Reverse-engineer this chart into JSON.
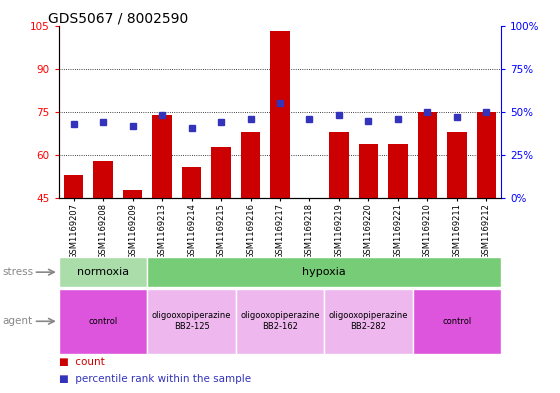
{
  "title": "GDS5067 / 8002590",
  "samples": [
    "GSM1169207",
    "GSM1169208",
    "GSM1169209",
    "GSM1169213",
    "GSM1169214",
    "GSM1169215",
    "GSM1169216",
    "GSM1169217",
    "GSM1169218",
    "GSM1169219",
    "GSM1169220",
    "GSM1169221",
    "GSM1169210",
    "GSM1169211",
    "GSM1169212"
  ],
  "counts": [
    53,
    58,
    48,
    74,
    56,
    63,
    68,
    103,
    45,
    68,
    64,
    64,
    75,
    68,
    75
  ],
  "percentiles": [
    43,
    44,
    42,
    48,
    41,
    44,
    46,
    55,
    46,
    48,
    45,
    46,
    50,
    47,
    50
  ],
  "bar_color": "#cc0000",
  "dot_color": "#3333bb",
  "ylim_left": [
    45,
    105
  ],
  "ylim_right": [
    0,
    100
  ],
  "yticks_left": [
    45,
    60,
    75,
    90,
    105
  ],
  "yticks_right": [
    0,
    25,
    50,
    75,
    100
  ],
  "ytick_labels_right": [
    "0%",
    "25%",
    "50%",
    "75%",
    "100%"
  ],
  "stress_groups": [
    {
      "label": "normoxia",
      "start": 0,
      "end": 3,
      "color": "#aaddaa"
    },
    {
      "label": "hypoxia",
      "start": 3,
      "end": 15,
      "color": "#77cc77"
    }
  ],
  "agent_groups": [
    {
      "label": "control",
      "start": 0,
      "end": 3,
      "color": "#dd55dd"
    },
    {
      "label": "oligooxopiperazine\nBB2-125",
      "start": 3,
      "end": 6,
      "color": "#eeb8ee"
    },
    {
      "label": "oligooxopiperazine\nBB2-162",
      "start": 6,
      "end": 9,
      "color": "#eeb8ee"
    },
    {
      "label": "oligooxopiperazine\nBB2-282",
      "start": 9,
      "end": 12,
      "color": "#eeb8ee"
    },
    {
      "label": "control",
      "start": 12,
      "end": 15,
      "color": "#dd55dd"
    }
  ],
  "background_color": "#ffffff",
  "title_fontsize": 10,
  "tick_fontsize": 7.5,
  "bar_width": 0.65
}
